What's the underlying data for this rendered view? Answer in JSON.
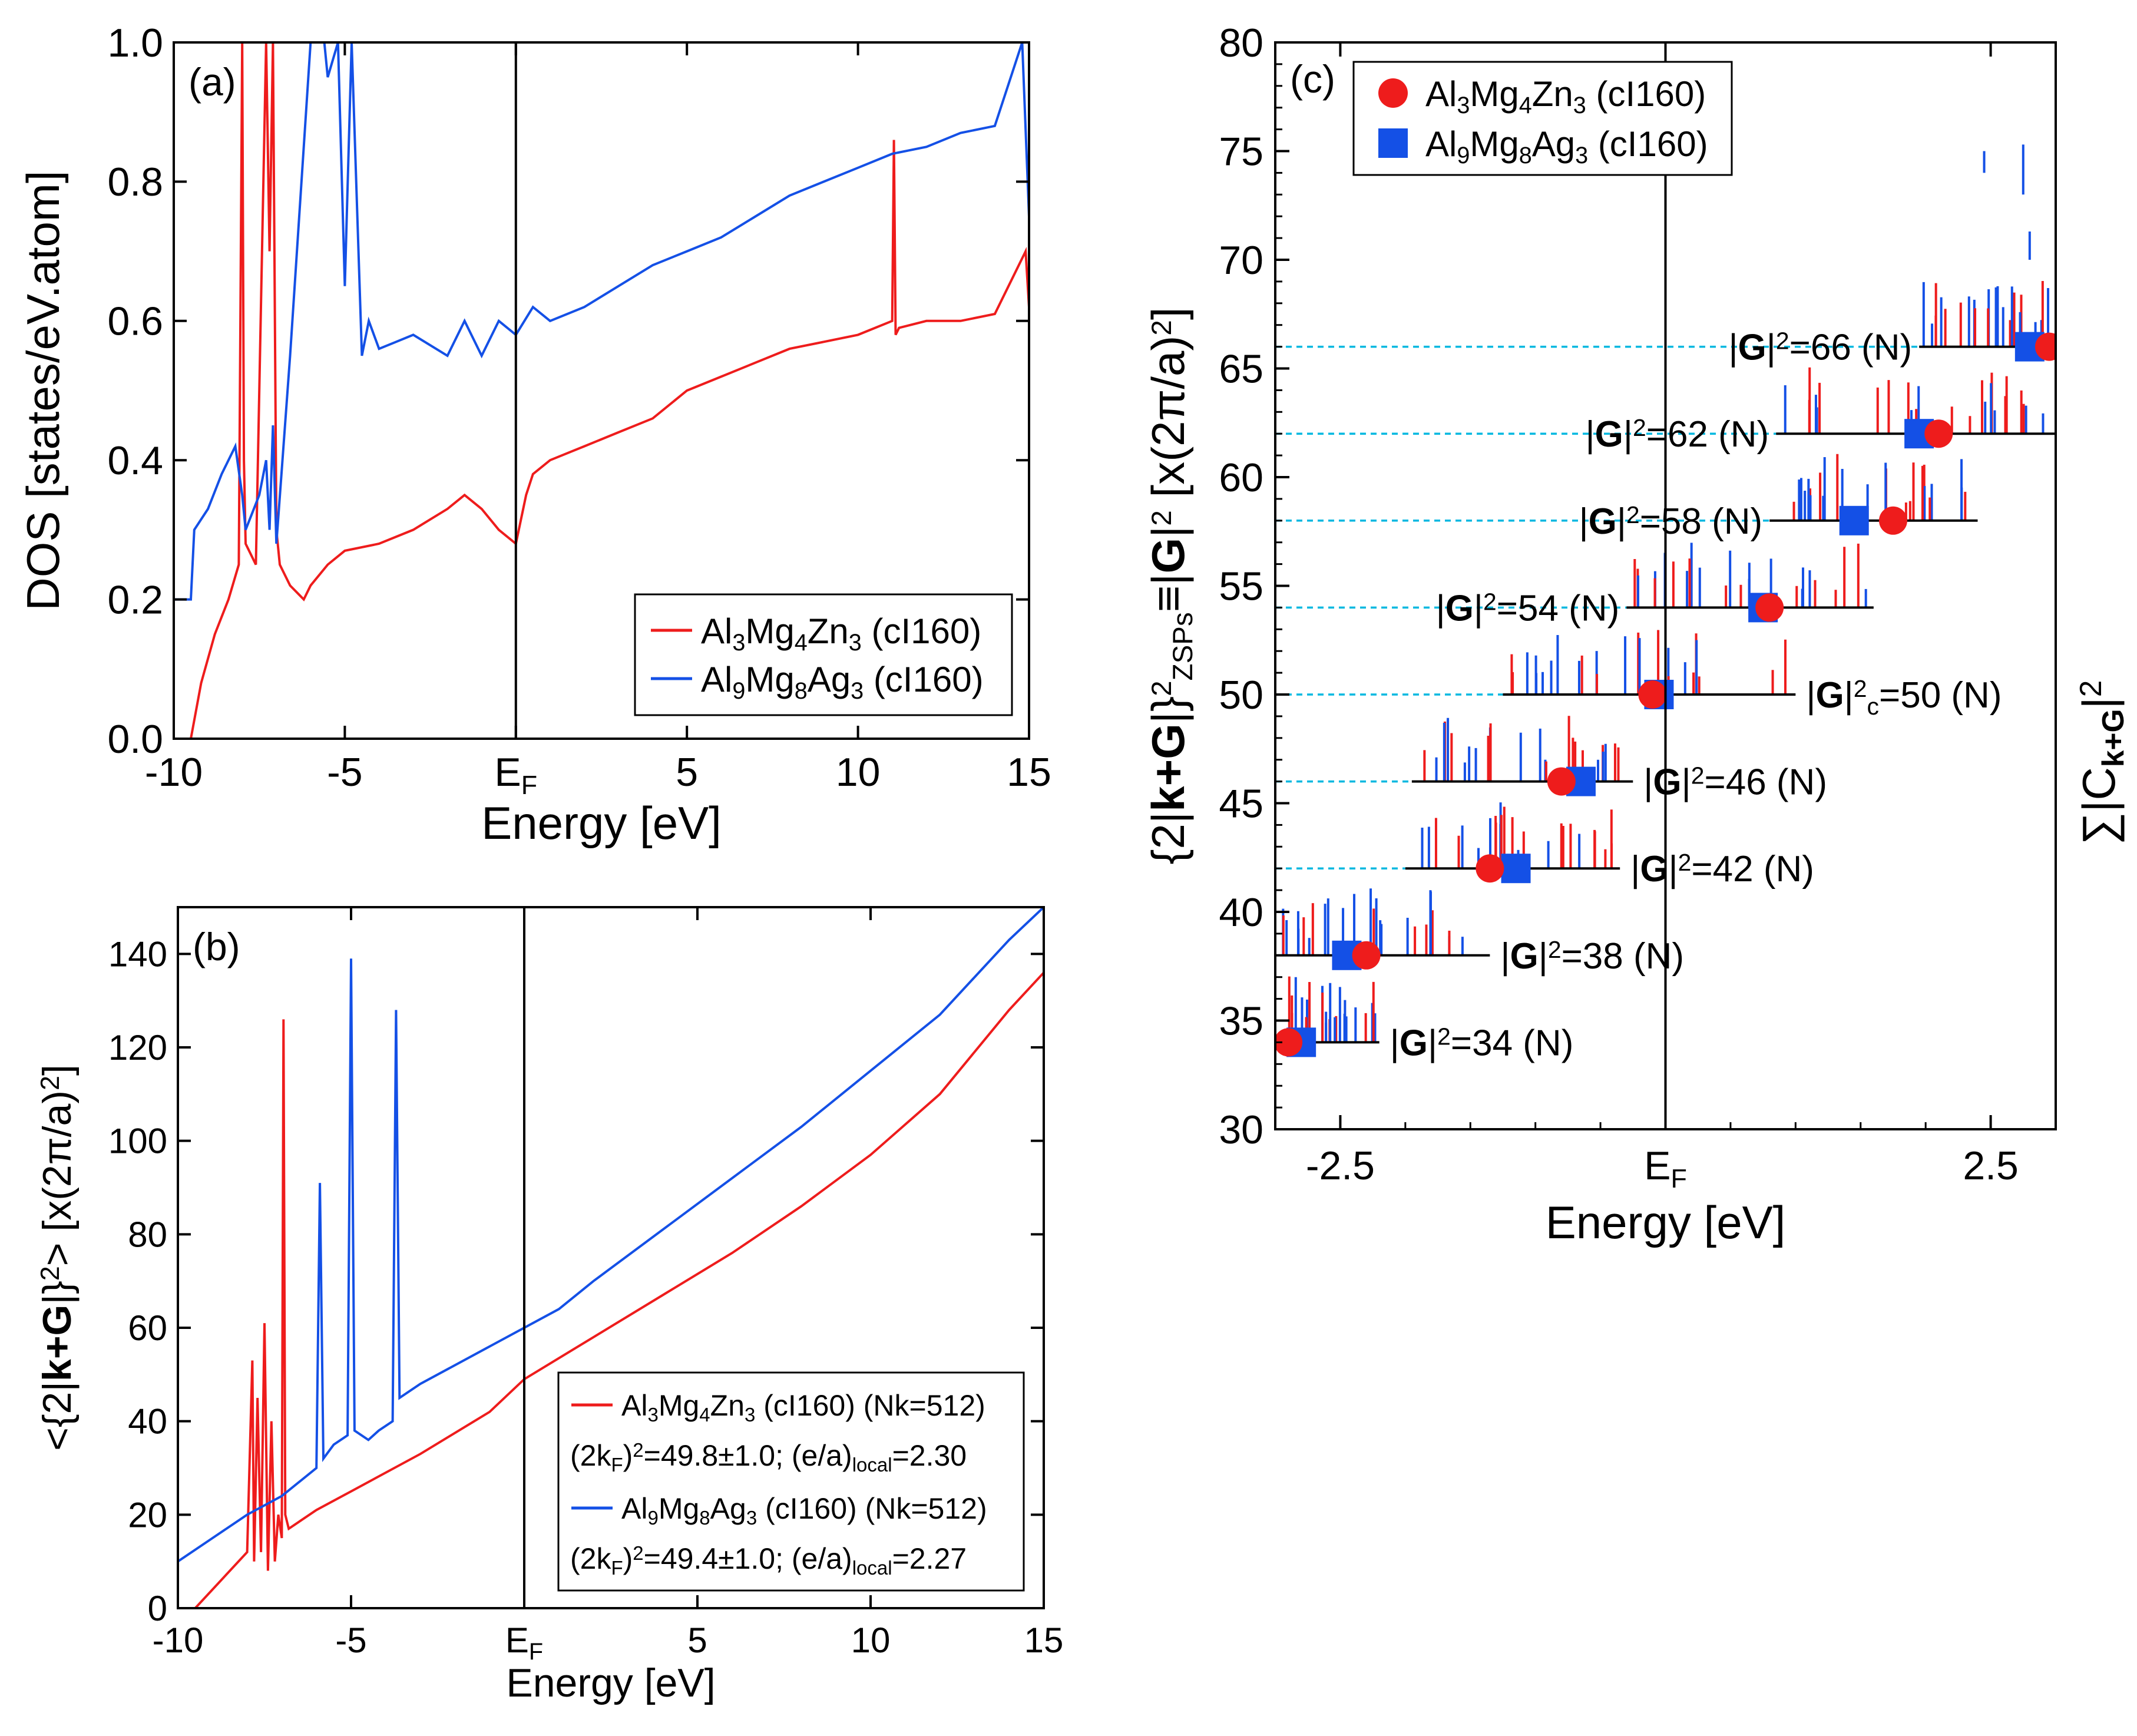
{
  "colors": {
    "red": "#ee1c1c",
    "blue": "#1450e6",
    "cyan": "#00b8e0",
    "black": "#000000"
  },
  "chart_data": [
    {
      "id": "a",
      "type": "line",
      "panel_label": "(a)",
      "title": "",
      "xlabel": "Energy [eV]",
      "ylabel": "DOS [states/eV.atom]",
      "xlim": [
        -10,
        15
      ],
      "ylim": [
        0,
        1.0
      ],
      "xticks": [
        -10,
        -5,
        0,
        5,
        10,
        15
      ],
      "xtick_labels": [
        "-10",
        "-5",
        "E",
        "5",
        "10",
        "15"
      ],
      "xtick_sub": "F",
      "yticks": [
        0,
        0.2,
        0.4,
        0.6,
        0.8,
        1.0
      ],
      "ytick_labels": [
        "0.0",
        "0.2",
        "0.4",
        "0.6",
        "0.8",
        "1.0"
      ],
      "fermi_line_x": 0,
      "legend_position": "lower-right",
      "series": [
        {
          "name": "Al3Mg4Zn3 (cI160)",
          "legend_parts": [
            "Al",
            "3",
            "Mg",
            "4",
            "Zn",
            "3",
            " (cI160)"
          ],
          "color": "red",
          "x": [
            -9.5,
            -9.2,
            -8.8,
            -8.4,
            -8.1,
            -8.0,
            -7.95,
            -7.9,
            -7.6,
            -7.3,
            -7.2,
            -7.1,
            -7.0,
            -6.9,
            -6.6,
            -6.2,
            -6.0,
            -5.5,
            -5.0,
            -4.0,
            -3.0,
            -2.0,
            -1.5,
            -1.0,
            -0.5,
            0.0,
            0.3,
            0.5,
            1.0,
            2.0,
            3.0,
            4.0,
            5.0,
            6.0,
            7.0,
            8.0,
            9.0,
            10.0,
            11.0,
            11.05,
            11.1,
            11.2,
            12.0,
            13.0,
            14.0,
            14.9,
            15.0
          ],
          "y": [
            0.0,
            0.08,
            0.15,
            0.2,
            0.25,
            1.0,
            0.4,
            0.28,
            0.25,
            1.0,
            0.7,
            1.0,
            0.3,
            0.25,
            0.22,
            0.2,
            0.22,
            0.25,
            0.27,
            0.28,
            0.3,
            0.33,
            0.35,
            0.33,
            0.3,
            0.28,
            0.35,
            0.38,
            0.4,
            0.42,
            0.44,
            0.46,
            0.5,
            0.52,
            0.54,
            0.56,
            0.57,
            0.58,
            0.6,
            0.86,
            0.58,
            0.59,
            0.6,
            0.6,
            0.61,
            0.7,
            0.62
          ]
        },
        {
          "name": "Al9Mg8Ag3 (cI160)",
          "legend_parts": [
            "Al",
            "9",
            "Mg",
            "8",
            "Ag",
            "3",
            " (cI160)"
          ],
          "color": "blue",
          "x": [
            -10.0,
            -9.5,
            -9.4,
            -9.0,
            -8.6,
            -8.2,
            -8.0,
            -7.9,
            -7.5,
            -7.3,
            -7.2,
            -7.1,
            -7.0,
            -6.6,
            -6.0,
            -5.6,
            -5.5,
            -5.2,
            -5.0,
            -4.8,
            -4.5,
            -4.3,
            -4.0,
            -3.5,
            -3.0,
            -2.0,
            -1.5,
            -1.0,
            -0.5,
            0.0,
            0.5,
            1.0,
            2.0,
            3.0,
            4.0,
            5.0,
            6.0,
            7.0,
            8.0,
            9.0,
            10.0,
            11.0,
            12.0,
            13.0,
            14.0,
            14.8,
            15.0
          ],
          "y": [
            0.2,
            0.2,
            0.3,
            0.33,
            0.38,
            0.42,
            0.35,
            0.3,
            0.35,
            0.4,
            0.3,
            0.45,
            0.28,
            0.55,
            1.0,
            1.0,
            0.95,
            1.0,
            0.65,
            1.0,
            0.55,
            0.6,
            0.56,
            0.57,
            0.58,
            0.55,
            0.6,
            0.55,
            0.6,
            0.58,
            0.62,
            0.6,
            0.62,
            0.65,
            0.68,
            0.7,
            0.72,
            0.75,
            0.78,
            0.8,
            0.82,
            0.84,
            0.85,
            0.87,
            0.88,
            1.0,
            0.75
          ]
        }
      ]
    },
    {
      "id": "b",
      "type": "line",
      "panel_label": "(b)",
      "title": "",
      "xlabel": "Energy [eV]",
      "ylabel": "<{2|k+G|}2> [x(2π/a)2]",
      "ylabel_parts": [
        "<{2|",
        "k+G",
        "|}",
        "2",
        "> [x(2π/a)",
        "2",
        "]"
      ],
      "xlim": [
        -10,
        15
      ],
      "ylim": [
        0,
        150
      ],
      "xticks": [
        -10,
        -5,
        0,
        5,
        10,
        15
      ],
      "xtick_labels": [
        "-10",
        "-5",
        "E",
        "5",
        "10",
        "15"
      ],
      "xtick_sub": "F",
      "yticks": [
        0,
        20,
        40,
        60,
        80,
        100,
        120,
        140
      ],
      "ytick_labels": [
        "0",
        "20",
        "40",
        "60",
        "80",
        "100",
        "120",
        "140"
      ],
      "fermi_line_x": 0,
      "legend_position": "lower-right",
      "series": [
        {
          "name": "Al3Mg4Zn3 (cI160) (Nk=512)",
          "legend_parts": [
            "Al",
            "3",
            "Mg",
            "4",
            "Zn",
            "3",
            "  (cI160) (Nk=512)"
          ],
          "color": "red",
          "annotation_parts": [
            "(2k",
            "F",
            ")",
            "2",
            "=49.8±1.0; (e/a)",
            "local",
            "=2.30"
          ],
          "x": [
            -9.5,
            -8.0,
            -7.85,
            -7.8,
            -7.7,
            -7.6,
            -7.5,
            -7.4,
            -7.3,
            -7.2,
            -7.1,
            -7.0,
            -6.95,
            -6.9,
            -6.8,
            -6.0,
            -5.0,
            -3.0,
            -1.0,
            0.0,
            2.0,
            4.0,
            6.0,
            8.0,
            10.0,
            12.0,
            14.0,
            15.0
          ],
          "y": [
            0,
            12,
            53,
            10,
            45,
            12,
            61,
            8,
            40,
            10,
            20,
            15,
            126,
            20,
            17,
            21,
            25,
            33,
            42,
            49,
            58,
            67,
            76,
            86,
            97,
            110,
            128,
            136
          ]
        },
        {
          "name": "Al9Mg8Ag3 (cI160) (Nk=512)",
          "legend_parts": [
            "Al",
            "9",
            "Mg",
            "8",
            "Ag",
            "3",
            "  (cI160) (Nk=512)"
          ],
          "color": "blue",
          "annotation_parts": [
            "(2k",
            "F",
            ")",
            "2",
            "=49.4±1.0;  (e/a)",
            "local",
            "=2.27"
          ],
          "x": [
            -10.0,
            -9.0,
            -8.0,
            -7.5,
            -7.0,
            -6.5,
            -6.0,
            -5.9,
            -5.8,
            -5.5,
            -5.1,
            -5.0,
            -4.9,
            -4.5,
            -4.2,
            -3.8,
            -3.7,
            -3.6,
            -3.0,
            -2.0,
            -1.0,
            0.0,
            1.0,
            2.0,
            4.0,
            6.0,
            8.0,
            10.0,
            12.0,
            14.0,
            15.0
          ],
          "y": [
            10,
            15,
            20,
            22,
            24,
            27,
            30,
            91,
            32,
            35,
            37,
            139,
            38,
            36,
            38,
            40,
            128,
            45,
            48,
            52,
            56,
            60,
            64,
            70,
            81,
            92,
            103,
            115,
            127,
            143,
            150
          ]
        }
      ]
    },
    {
      "id": "c",
      "type": "scatter",
      "panel_label": "(c)",
      "title": "",
      "xlabel": "Energy [eV]",
      "ylabel": "{2|k+G|}2ZSPs≡|G|2 [x(2π/a)2]",
      "ylabel_parts": [
        "{2|",
        "k+G",
        "|}",
        "2",
        "ZSPs",
        "≡|",
        "G",
        "|",
        "2",
        " [x(2π/a)",
        "2",
        "]"
      ],
      "right_label_parts": [
        "∑|C",
        "k+G",
        "|",
        "2"
      ],
      "xlim": [
        -3.0,
        3.0
      ],
      "ylim": [
        30,
        80
      ],
      "xticks": [
        -2.5,
        0,
        2.5
      ],
      "xtick_labels": [
        "-2.5",
        "E",
        "2.5"
      ],
      "xtick_sub": "F",
      "minor_xticks": [
        -2.0,
        -1.5,
        -1.0,
        -0.5,
        0.5,
        1.0,
        1.5,
        2.0
      ],
      "yticks": [
        30,
        35,
        40,
        45,
        50,
        55,
        60,
        65,
        70,
        75,
        80
      ],
      "ytick_labels": [
        "30",
        "35",
        "40",
        "45",
        "50",
        "55",
        "60",
        "65",
        "70",
        "75",
        "80"
      ],
      "fermi_line_x": 0,
      "legend_position": "top-left",
      "legend": [
        {
          "marker": "circle",
          "color": "red",
          "parts": [
            "Al",
            "3",
            "Mg",
            "4",
            "Zn",
            "3",
            " (cI160)"
          ]
        },
        {
          "marker": "square",
          "color": "blue",
          "parts": [
            "Al",
            "9",
            "Mg",
            "8",
            "Ag",
            "3",
            " (cI160)"
          ]
        }
      ],
      "levels": [
        {
          "g2": 34,
          "label_parts": [
            "|",
            "G",
            "|",
            "2",
            "=34 (N)"
          ],
          "label_side": "right",
          "seg": [
            -2.95,
            -2.2
          ],
          "red_x": -2.9,
          "blue_x": -2.8
        },
        {
          "g2": 38,
          "label_parts": [
            "|",
            "G",
            "|",
            "2",
            "=38 (N)"
          ],
          "label_side": "right",
          "seg": [
            -3.0,
            -1.35
          ],
          "red_x": -2.3,
          "blue_x": -2.45
        },
        {
          "g2": 42,
          "label_parts": [
            "|",
            "G",
            "|",
            "2",
            "=42 (N)"
          ],
          "label_side": "right",
          "seg": [
            -2.0,
            -0.35
          ],
          "red_x": -1.35,
          "blue_x": -1.15,
          "cyan": true
        },
        {
          "g2": 46,
          "label_parts": [
            "|",
            "G",
            "|",
            "2",
            "=46 (N)"
          ],
          "label_side": "right",
          "seg": [
            -1.95,
            -0.25
          ],
          "red_x": -0.8,
          "blue_x": -0.65,
          "cyan": true
        },
        {
          "g2": 50,
          "label_parts": [
            "|",
            "G",
            "|",
            "2",
            "c",
            "=50 (N)"
          ],
          "label_side": "right",
          "seg": [
            -1.25,
            1.0
          ],
          "red_x": -0.1,
          "blue_x": -0.05,
          "cyan": true,
          "sub_c": true
        },
        {
          "g2": 54,
          "label_parts": [
            "|",
            "G",
            "|",
            "2",
            "=54 (N)"
          ],
          "label_side": "left",
          "seg": [
            -0.3,
            1.6
          ],
          "red_x": 0.8,
          "blue_x": 0.75,
          "cyan": true
        },
        {
          "g2": 58,
          "label_parts": [
            "|",
            "G",
            "|",
            "2",
            "=58 (N)"
          ],
          "label_side": "left",
          "seg": [
            0.8,
            2.4
          ],
          "red_x": 1.75,
          "blue_x": 1.45,
          "cyan": true
        },
        {
          "g2": 62,
          "label_parts": [
            "|",
            "G",
            "|",
            "2",
            "=62 (N)"
          ],
          "label_side": "left",
          "seg": [
            0.85,
            3.0
          ],
          "red_x": 2.1,
          "blue_x": 1.95,
          "cyan": true
        },
        {
          "g2": 66,
          "label_parts": [
            "|",
            "G",
            "|",
            "2",
            "=66 (N)"
          ],
          "label_side": "left",
          "seg": [
            1.95,
            3.0
          ],
          "red_x": 2.95,
          "blue_x": 2.8,
          "cyan": true
        }
      ],
      "extra_blue_spikes": [
        {
          "x": 2.45,
          "y0": 74,
          "y1": 75
        },
        {
          "x": 2.75,
          "y0": 73,
          "y1": 75.3
        },
        {
          "x": 2.8,
          "y0": 70,
          "y1": 71.3
        }
      ]
    }
  ]
}
